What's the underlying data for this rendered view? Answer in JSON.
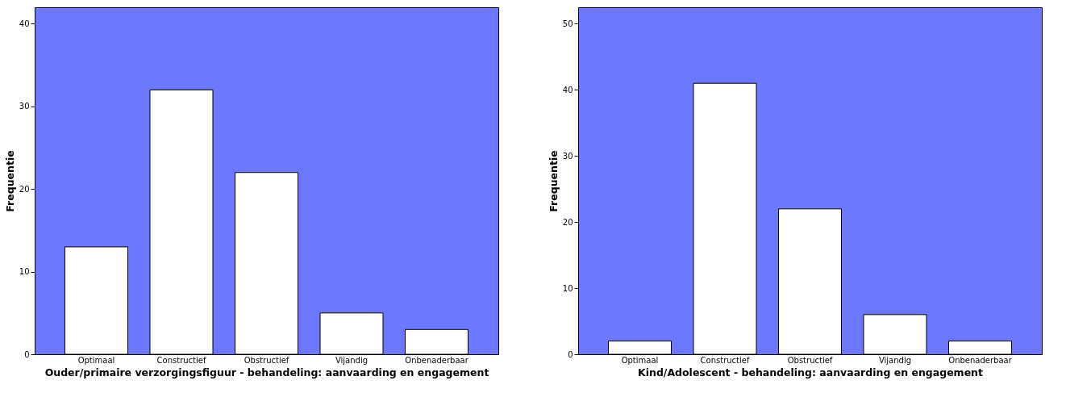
{
  "chart_data": [
    {
      "type": "bar",
      "categories": [
        "Optimaal",
        "Constructief",
        "Obstructief",
        "Vijandig",
        "Onbenaderbaar"
      ],
      "values": [
        13,
        32,
        22,
        5,
        3
      ],
      "color": "#ffffff",
      "xlabel": "Ouder/primaire verzorgingsfiguur - behandeling: aanvaarding en engagement",
      "ylabel": "Frequentie",
      "ylim": [
        0,
        42
      ],
      "yticks": [
        0,
        10,
        20,
        30,
        40
      ],
      "grid": false
    },
    {
      "type": "bar",
      "categories": [
        "Optimaal",
        "Constructief",
        "Obstructief",
        "Vijandig",
        "Onbenaderbaar"
      ],
      "values": [
        2,
        41,
        22,
        6,
        2
      ],
      "color": "#ffffff",
      "xlabel": "Kind/Adolescent - behandeling: aanvaarding en engagement",
      "ylabel": "Frequentie",
      "ylim": [
        0,
        52.5
      ],
      "yticks": [
        0,
        10,
        20,
        30,
        40,
        50
      ],
      "grid": false
    }
  ]
}
